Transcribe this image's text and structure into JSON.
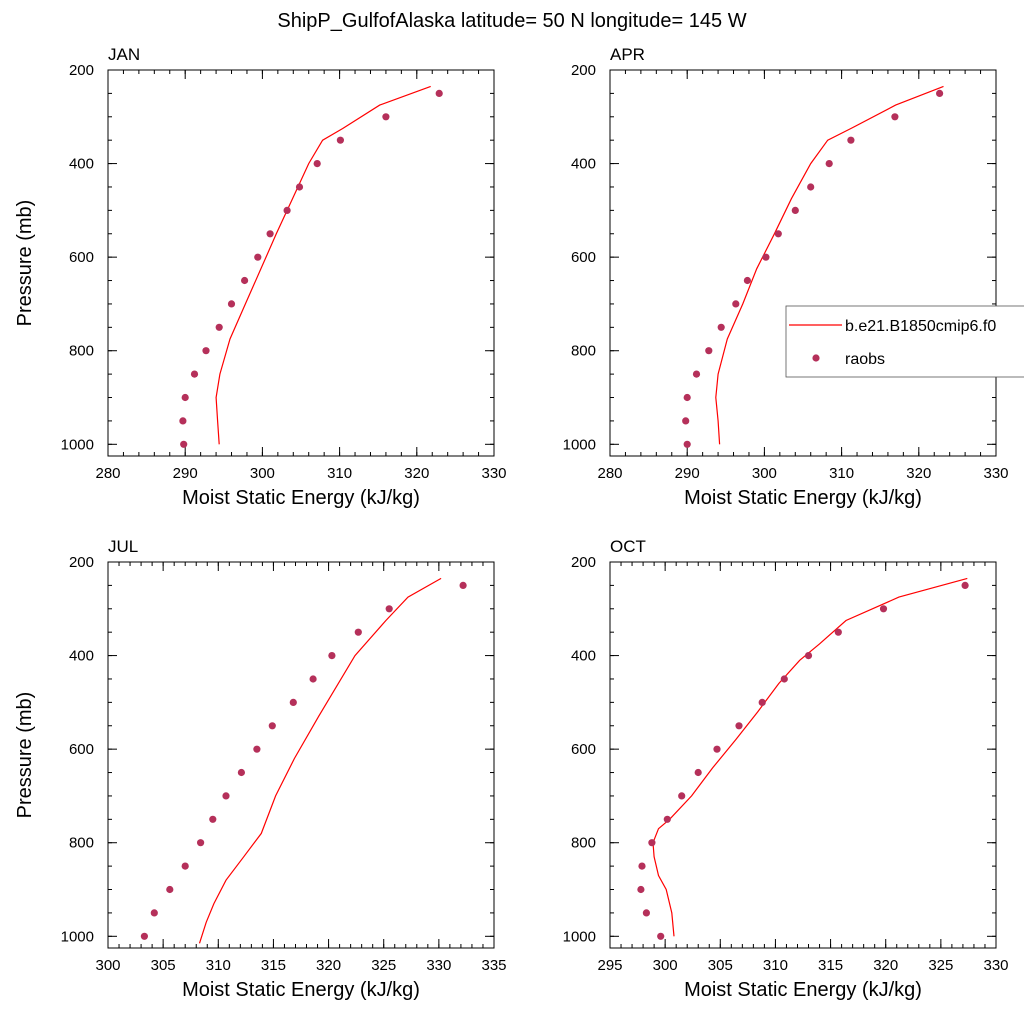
{
  "figure": {
    "title": "ShipP_GulfofAlaska  latitude= 50 N longitude= 145 W"
  },
  "legend": {
    "entries": [
      {
        "label": "b.e21.B1850cmip6.f0",
        "kind": "line",
        "color": "#ff0000"
      },
      {
        "label": "raobs",
        "kind": "marker",
        "color": "#b5305a"
      }
    ]
  },
  "colors": {
    "model_line": "#ff0000",
    "raobs_marker": "#b5305a"
  },
  "chart_data": [
    {
      "type": "line",
      "panel_title": "JAN",
      "xlabel": "Moist Static Energy (kJ/kg)",
      "ylabel": "Pressure (mb)",
      "xlim": [
        280,
        330
      ],
      "ylim": [
        1025,
        200
      ],
      "y_reversed": true,
      "xticks": [
        280,
        290,
        300,
        310,
        320,
        330
      ],
      "yticks": [
        200,
        400,
        600,
        800,
        1000
      ],
      "series": [
        {
          "name": "b.e21.B1850cmip6.f0",
          "kind": "line",
          "x": [
            294.4,
            294.2,
            294.0,
            294.5,
            295.8,
            297.8,
            299.8,
            301.8,
            303.9,
            306.0,
            307.8,
            310.4,
            315.2,
            321.8
          ],
          "y": [
            1000,
            950,
            900,
            850,
            775,
            700,
            625,
            550,
            475,
            400,
            350,
            325,
            275,
            235
          ]
        },
        {
          "name": "raobs",
          "kind": "scatter",
          "x": [
            289.8,
            289.7,
            290.0,
            291.2,
            292.7,
            294.4,
            296.0,
            297.7,
            299.4,
            301.0,
            303.2,
            304.8,
            307.1,
            310.1,
            316.0,
            322.9
          ],
          "y": [
            1000,
            950,
            900,
            850,
            800,
            750,
            700,
            650,
            600,
            550,
            500,
            450,
            400,
            350,
            300,
            250
          ]
        }
      ]
    },
    {
      "type": "line",
      "panel_title": "APR",
      "xlabel": "Moist Static Energy (kJ/kg)",
      "ylabel": "",
      "xlim": [
        280,
        330
      ],
      "ylim": [
        1025,
        200
      ],
      "y_reversed": true,
      "xticks": [
        280,
        290,
        300,
        310,
        320,
        330
      ],
      "yticks": [
        200,
        400,
        600,
        800,
        1000
      ],
      "series": [
        {
          "name": "b.e21.B1850cmip6.f0",
          "kind": "line",
          "x": [
            294.2,
            294.0,
            293.7,
            294.0,
            295.2,
            297.2,
            299.0,
            301.3,
            303.5,
            306.0,
            308.2,
            311.2,
            317.0,
            323.2
          ],
          "y": [
            1000,
            950,
            900,
            850,
            775,
            700,
            625,
            550,
            475,
            400,
            350,
            325,
            275,
            235
          ]
        },
        {
          "name": "raobs",
          "kind": "scatter",
          "x": [
            290.0,
            289.8,
            290.0,
            291.2,
            292.8,
            294.4,
            296.3,
            297.8,
            300.2,
            301.8,
            304.0,
            306.0,
            308.4,
            311.2,
            316.9,
            322.7
          ],
          "y": [
            1000,
            950,
            900,
            850,
            800,
            750,
            700,
            650,
            600,
            550,
            500,
            450,
            400,
            350,
            300,
            250
          ]
        }
      ]
    },
    {
      "type": "line",
      "panel_title": "JUL",
      "xlabel": "Moist Static Energy (kJ/kg)",
      "ylabel": "Pressure (mb)",
      "xlim": [
        300,
        335
      ],
      "ylim": [
        1025,
        200
      ],
      "y_reversed": true,
      "xticks": [
        300,
        305,
        310,
        315,
        320,
        325,
        330,
        335
      ],
      "yticks": [
        200,
        400,
        600,
        800,
        1000
      ],
      "series": [
        {
          "name": "b.e21.B1850cmip6.f0",
          "kind": "line",
          "x": [
            308.3,
            308.9,
            309.6,
            310.7,
            312.3,
            313.9,
            315.2,
            316.9,
            319.1,
            322.4,
            325.2,
            327.2,
            330.2
          ],
          "y": [
            1015,
            970,
            930,
            880,
            830,
            780,
            700,
            620,
            530,
            400,
            325,
            275,
            235
          ]
        },
        {
          "name": "raobs",
          "kind": "scatter",
          "x": [
            303.3,
            304.2,
            305.6,
            307.0,
            308.4,
            309.5,
            310.7,
            312.1,
            313.5,
            314.9,
            316.8,
            318.6,
            320.3,
            322.7,
            325.5,
            332.2
          ],
          "y": [
            1000,
            950,
            900,
            850,
            800,
            750,
            700,
            650,
            600,
            550,
            500,
            450,
            400,
            350,
            300,
            250
          ]
        }
      ]
    },
    {
      "type": "line",
      "panel_title": "OCT",
      "xlabel": "Moist Static Energy (kJ/kg)",
      "ylabel": "",
      "xlim": [
        295,
        330
      ],
      "ylim": [
        1025,
        200
      ],
      "y_reversed": true,
      "xticks": [
        295,
        300,
        305,
        310,
        315,
        320,
        325,
        330
      ],
      "yticks": [
        200,
        400,
        600,
        800,
        1000
      ],
      "series": [
        {
          "name": "b.e21.B1850cmip6.f0",
          "kind": "line",
          "x": [
            300.8,
            300.6,
            300.1,
            299.4,
            299.0,
            298.9,
            299.4,
            300.4,
            302.4,
            304.3,
            306.4,
            308.4,
            310.3,
            312.2,
            314.0,
            316.4,
            321.2,
            327.4
          ],
          "y": [
            1000,
            950,
            900,
            870,
            830,
            800,
            770,
            750,
            700,
            640,
            580,
            520,
            460,
            410,
            375,
            325,
            275,
            235
          ]
        },
        {
          "name": "raobs",
          "kind": "scatter",
          "x": [
            299.6,
            298.3,
            297.8,
            297.9,
            298.8,
            300.2,
            301.5,
            303.0,
            304.7,
            306.7,
            308.8,
            310.8,
            313.0,
            315.7,
            319.8,
            327.2
          ],
          "y": [
            1000,
            950,
            900,
            850,
            800,
            750,
            700,
            650,
            600,
            550,
            500,
            450,
            400,
            350,
            300,
            250
          ]
        }
      ]
    }
  ]
}
